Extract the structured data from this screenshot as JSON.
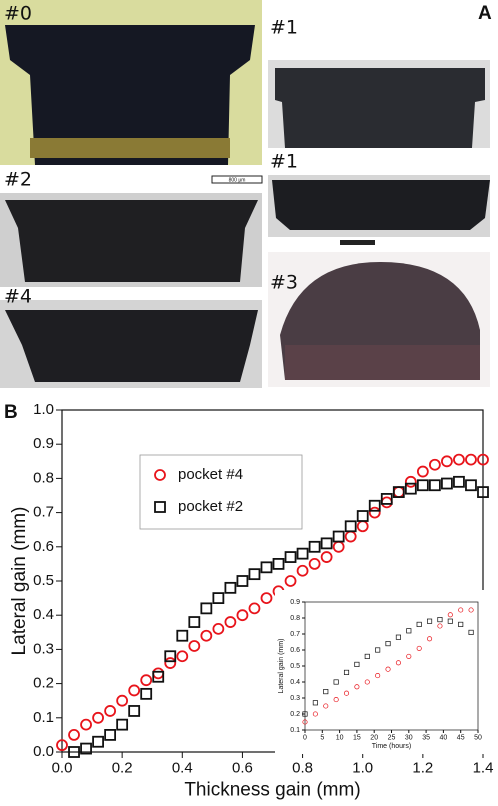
{
  "panel_a": {
    "label": "A",
    "scale_bar": "800 μm",
    "images": [
      {
        "label": "#0"
      },
      {
        "label": "#1"
      },
      {
        "label": "#2"
      },
      {
        "label": "#1"
      },
      {
        "label": "#4"
      },
      {
        "label": "#3"
      }
    ]
  },
  "panel_b_label": "B",
  "chart_data": [
    {
      "type": "scatter",
      "x_label": "Thickness gain (mm)",
      "y_label": "Lateral gain (mm)",
      "xlim": [
        0,
        1.4
      ],
      "ylim": [
        0,
        1.0
      ],
      "xticks": [
        {
          "value": 0,
          "label": "0.0"
        },
        0.2,
        0.4,
        0.6,
        0.8,
        {
          "value": 1,
          "label": "1.0"
        },
        1.2,
        1.4
      ],
      "yticks": [
        {
          "value": 0,
          "label": "0.0"
        },
        0.1,
        0.2,
        0.3,
        0.4,
        0.5,
        0.6,
        0.7,
        0.8,
        0.9,
        {
          "value": 1,
          "label": "1.0"
        }
      ],
      "legend": "upper left",
      "series": [
        {
          "name": "pocket #4",
          "color": "#e8141b",
          "marker": "circle",
          "x": [
            0,
            0.04,
            0.08,
            0.12,
            0.16,
            0.2,
            0.24,
            0.28,
            0.32,
            0.36,
            0.4,
            0.44,
            0.48,
            0.52,
            0.56,
            0.6,
            0.64,
            0.68,
            0.72,
            0.76,
            0.8,
            0.84,
            0.88,
            0.92,
            0.96,
            1.0,
            1.04,
            1.08,
            1.12,
            1.16,
            1.2,
            1.24,
            1.28,
            1.32,
            1.36,
            1.4
          ],
          "values": [
            0.02,
            0.05,
            0.08,
            0.1,
            0.12,
            0.15,
            0.18,
            0.21,
            0.23,
            0.26,
            0.28,
            0.31,
            0.34,
            0.36,
            0.38,
            0.4,
            0.42,
            0.45,
            0.47,
            0.5,
            0.53,
            0.55,
            0.57,
            0.6,
            0.63,
            0.66,
            0.7,
            0.73,
            0.76,
            0.79,
            0.82,
            0.84,
            0.85,
            0.855,
            0.855,
            0.855
          ]
        },
        {
          "name": "pocket #2",
          "color": "#111111",
          "marker": "square",
          "x": [
            0.04,
            0.08,
            0.12,
            0.16,
            0.2,
            0.24,
            0.28,
            0.32,
            0.36,
            0.4,
            0.44,
            0.48,
            0.52,
            0.56,
            0.6,
            0.64,
            0.68,
            0.72,
            0.76,
            0.8,
            0.84,
            0.88,
            0.92,
            0.96,
            1.0,
            1.04,
            1.08,
            1.12,
            1.16,
            1.2,
            1.24,
            1.28,
            1.32,
            1.36,
            1.4
          ],
          "values": [
            0,
            0.01,
            0.03,
            0.05,
            0.08,
            0.12,
            0.17,
            0.22,
            0.28,
            0.34,
            0.38,
            0.42,
            0.45,
            0.48,
            0.5,
            0.52,
            0.54,
            0.55,
            0.57,
            0.58,
            0.6,
            0.61,
            0.63,
            0.66,
            0.69,
            0.72,
            0.74,
            0.76,
            0.77,
            0.78,
            0.78,
            0.785,
            0.79,
            0.78,
            0.76
          ]
        }
      ]
    },
    {
      "type": "scatter",
      "x_label": "Time (hours)",
      "y_label": "Lateral gain (mm)",
      "xlim": [
        0,
        50
      ],
      "ylim": [
        0.1,
        0.9
      ],
      "xticks": [
        0,
        5,
        10,
        15,
        20,
        25,
        30,
        35,
        40,
        45,
        50
      ],
      "yticks": [
        0.1,
        0.2,
        0.3,
        0.4,
        0.5,
        0.6,
        0.7,
        0.8,
        0.9
      ],
      "series": [
        {
          "color": "#e8141b",
          "marker": "circle",
          "x": [
            0,
            3,
            6,
            9,
            12,
            15,
            18,
            21,
            24,
            27,
            30,
            33,
            36,
            39,
            42,
            45,
            48
          ],
          "values": [
            0.15,
            0.2,
            0.25,
            0.29,
            0.33,
            0.37,
            0.4,
            0.44,
            0.48,
            0.52,
            0.56,
            0.61,
            0.67,
            0.75,
            0.82,
            0.85,
            0.85
          ]
        },
        {
          "color": "#111111",
          "marker": "square",
          "x": [
            0,
            3,
            6,
            9,
            12,
            15,
            18,
            21,
            24,
            27,
            30,
            33,
            36,
            39,
            42,
            45,
            48
          ],
          "values": [
            0.2,
            0.27,
            0.34,
            0.4,
            0.46,
            0.51,
            0.56,
            0.6,
            0.64,
            0.68,
            0.72,
            0.76,
            0.78,
            0.79,
            0.78,
            0.76,
            0.71
          ]
        }
      ]
    }
  ]
}
